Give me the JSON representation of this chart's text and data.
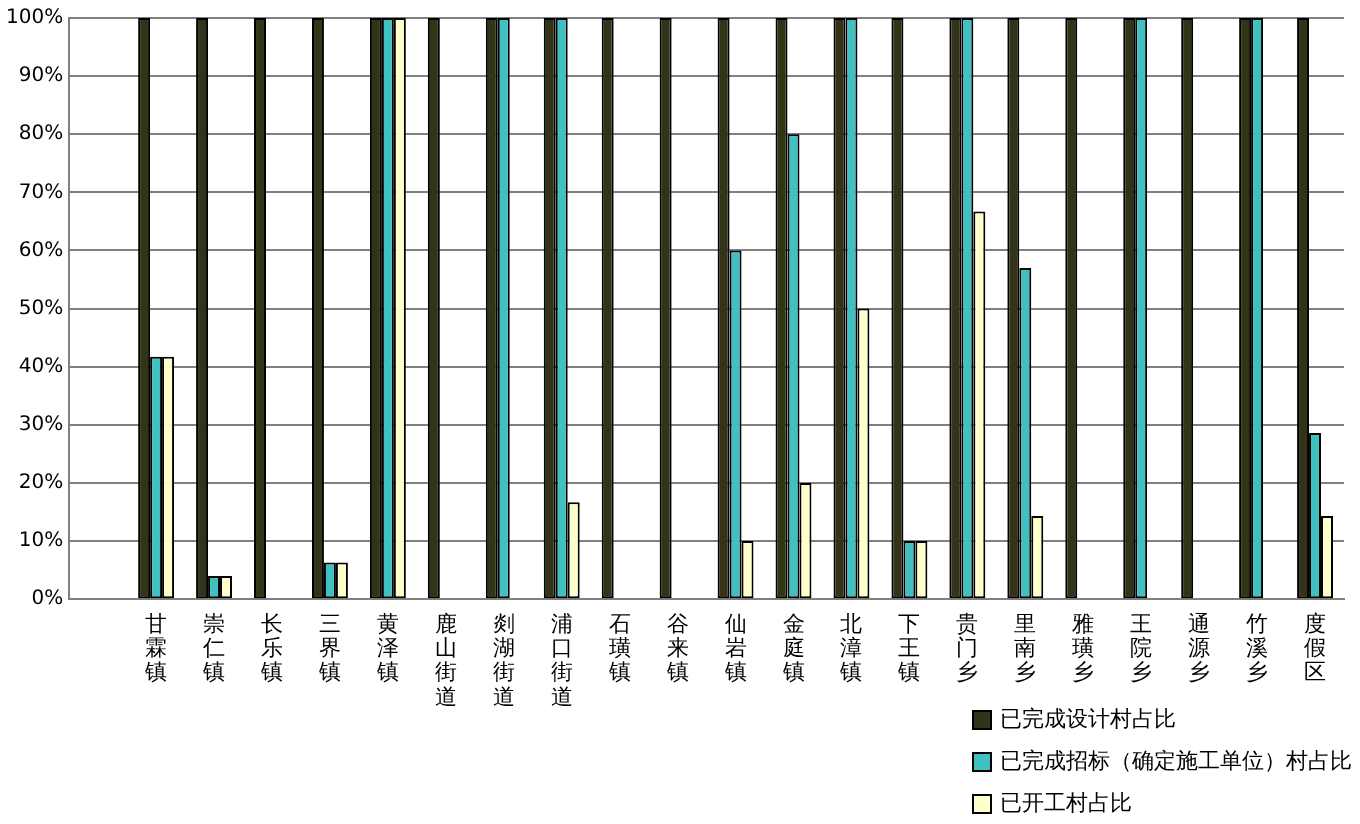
{
  "chart_data": {
    "type": "bar",
    "categories": [
      null,
      "甘霖镇",
      "崇仁镇",
      "长乐镇",
      "三界镇",
      "黄泽镇",
      "鹿山街道",
      "剡湖街道",
      "浦口街道",
      "石璜镇",
      "谷来镇",
      "仙岩镇",
      "金庭镇",
      "北漳镇",
      "下王镇",
      "贵门乡",
      "里南乡",
      "雅璜乡",
      "王院乡",
      "通源乡",
      "竹溪乡",
      "度假区"
    ],
    "series": [
      {
        "name": "已完成设计村占比",
        "color": "#333318",
        "values": [
          null,
          100,
          100,
          100,
          100,
          100,
          100,
          100,
          100,
          100,
          100,
          100,
          100,
          100,
          100,
          100,
          100,
          100,
          100,
          100,
          100,
          100
        ]
      },
      {
        "name": "已完成招标（确定施工单位）村占比",
        "color": "#40c0c0",
        "values": [
          null,
          41.7,
          4,
          0,
          6.3,
          100,
          0,
          100,
          100,
          0,
          0,
          60,
          80,
          100,
          10,
          100,
          57,
          0,
          100,
          0,
          100,
          28.6
        ]
      },
      {
        "name": "已开工村占比",
        "color": "#ffffcc",
        "values": [
          null,
          41.7,
          4,
          0,
          6.3,
          100,
          0,
          0,
          16.7,
          0,
          0,
          10,
          20,
          50,
          10,
          66.7,
          14.3,
          0,
          0,
          0,
          0,
          14.3
        ]
      }
    ],
    "ylim": [
      0,
      100
    ],
    "yticks": [
      {
        "value": 0,
        "label": "0%"
      },
      {
        "value": 10,
        "label": "10%"
      },
      {
        "value": 20,
        "label": "20%"
      },
      {
        "value": 30,
        "label": "30%"
      },
      {
        "value": 40,
        "label": "40%"
      },
      {
        "value": 50,
        "label": "50%"
      },
      {
        "value": 60,
        "label": "60%"
      },
      {
        "value": 70,
        "label": "70%"
      },
      {
        "value": 80,
        "label": "80%"
      },
      {
        "value": 90,
        "label": "90%"
      },
      {
        "value": 100,
        "label": "100%"
      }
    ],
    "grid": "y",
    "legend": "bottom right"
  }
}
